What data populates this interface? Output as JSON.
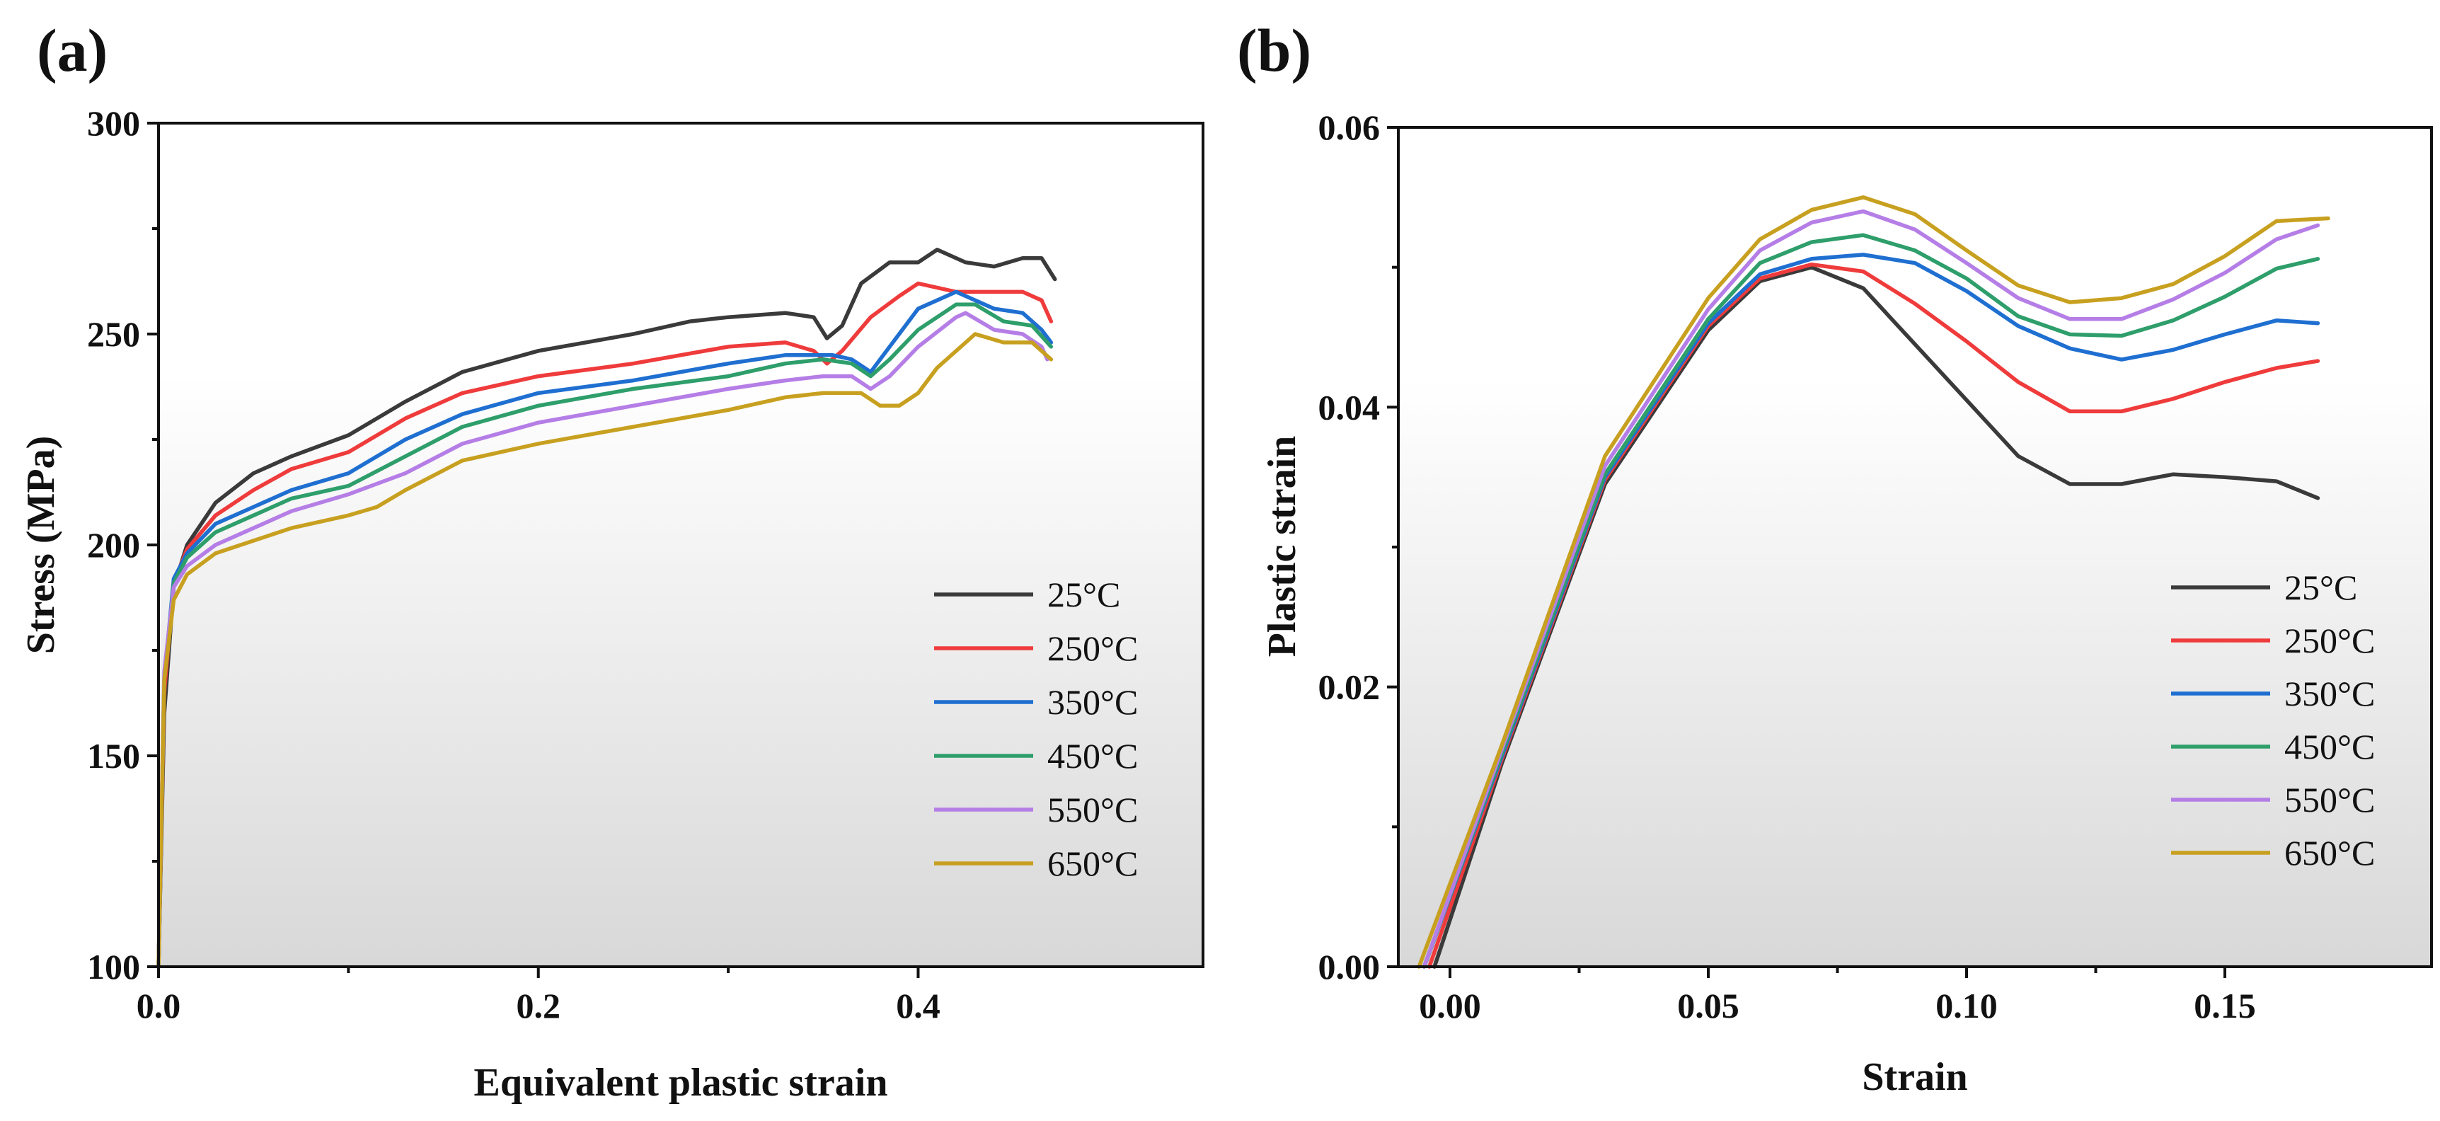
{
  "chart_data": [
    {
      "type": "line",
      "panel_label": "(a)",
      "xlabel": "Equivalent plastic strain",
      "ylabel": "Stress (MPa)",
      "xlim": [
        0,
        0.55
      ],
      "ylim": [
        100,
        300
      ],
      "x_ticks": [
        0.0,
        0.2,
        0.4
      ],
      "x_tick_labels": [
        "0.0",
        "0.2",
        "0.4"
      ],
      "y_ticks": [
        100,
        150,
        200,
        250,
        300
      ],
      "y_tick_labels": [
        "100",
        "150",
        "200",
        "250",
        "300"
      ],
      "legend_position": "bottom-right",
      "series": [
        {
          "name": "25°C",
          "color": "#3a3a3a",
          "points": [
            [
              0,
              100
            ],
            [
              0.003,
              160
            ],
            [
              0.008,
              190
            ],
            [
              0.015,
              200
            ],
            [
              0.03,
              210
            ],
            [
              0.05,
              217
            ],
            [
              0.07,
              221
            ],
            [
              0.1,
              226
            ],
            [
              0.13,
              234
            ],
            [
              0.16,
              241
            ],
            [
              0.2,
              246
            ],
            [
              0.25,
              250
            ],
            [
              0.28,
              253
            ],
            [
              0.3,
              254
            ],
            [
              0.33,
              255
            ],
            [
              0.345,
              254
            ],
            [
              0.352,
              249
            ],
            [
              0.36,
              252
            ],
            [
              0.37,
              262
            ],
            [
              0.385,
              267
            ],
            [
              0.4,
              267
            ],
            [
              0.41,
              270
            ],
            [
              0.425,
              267
            ],
            [
              0.44,
              266
            ],
            [
              0.455,
              268
            ],
            [
              0.465,
              268
            ],
            [
              0.472,
              263
            ]
          ]
        },
        {
          "name": "250°C",
          "color": "#ef3b3b",
          "points": [
            [
              0,
              100
            ],
            [
              0.003,
              165
            ],
            [
              0.008,
              191
            ],
            [
              0.015,
              199
            ],
            [
              0.03,
              207
            ],
            [
              0.05,
              213
            ],
            [
              0.07,
              218
            ],
            [
              0.1,
              222
            ],
            [
              0.13,
              230
            ],
            [
              0.16,
              236
            ],
            [
              0.2,
              240
            ],
            [
              0.25,
              243
            ],
            [
              0.3,
              247
            ],
            [
              0.33,
              248
            ],
            [
              0.345,
              246
            ],
            [
              0.352,
              243
            ],
            [
              0.36,
              246
            ],
            [
              0.375,
              254
            ],
            [
              0.39,
              259
            ],
            [
              0.4,
              262
            ],
            [
              0.42,
              260
            ],
            [
              0.44,
              260
            ],
            [
              0.455,
              260
            ],
            [
              0.465,
              258
            ],
            [
              0.47,
              253
            ]
          ]
        },
        {
          "name": "350°C",
          "color": "#1f6fd1",
          "points": [
            [
              0,
              100
            ],
            [
              0.003,
              168
            ],
            [
              0.008,
              192
            ],
            [
              0.015,
              198
            ],
            [
              0.03,
              205
            ],
            [
              0.05,
              209
            ],
            [
              0.07,
              213
            ],
            [
              0.1,
              217
            ],
            [
              0.13,
              225
            ],
            [
              0.16,
              231
            ],
            [
              0.2,
              236
            ],
            [
              0.25,
              239
            ],
            [
              0.3,
              243
            ],
            [
              0.33,
              245
            ],
            [
              0.345,
              245
            ],
            [
              0.355,
              245
            ],
            [
              0.365,
              244
            ],
            [
              0.375,
              241
            ],
            [
              0.385,
              247
            ],
            [
              0.4,
              256
            ],
            [
              0.42,
              260
            ],
            [
              0.44,
              256
            ],
            [
              0.455,
              255
            ],
            [
              0.465,
              251
            ],
            [
              0.47,
              248
            ]
          ]
        },
        {
          "name": "450°C",
          "color": "#2e9e6b",
          "points": [
            [
              0,
              100
            ],
            [
              0.003,
              168
            ],
            [
              0.008,
              191
            ],
            [
              0.015,
              197
            ],
            [
              0.03,
              203
            ],
            [
              0.05,
              207
            ],
            [
              0.07,
              211
            ],
            [
              0.1,
              214
            ],
            [
              0.13,
              221
            ],
            [
              0.16,
              228
            ],
            [
              0.2,
              233
            ],
            [
              0.25,
              237
            ],
            [
              0.3,
              240
            ],
            [
              0.33,
              243
            ],
            [
              0.35,
              244
            ],
            [
              0.365,
              243
            ],
            [
              0.375,
              240
            ],
            [
              0.385,
              244
            ],
            [
              0.4,
              251
            ],
            [
              0.42,
              257
            ],
            [
              0.43,
              257
            ],
            [
              0.445,
              253
            ],
            [
              0.46,
              252
            ],
            [
              0.47,
              247
            ]
          ]
        },
        {
          "name": "550°C",
          "color": "#b57ee6",
          "points": [
            [
              0,
              100
            ],
            [
              0.003,
              170
            ],
            [
              0.008,
              190
            ],
            [
              0.015,
              195
            ],
            [
              0.03,
              200
            ],
            [
              0.05,
              204
            ],
            [
              0.07,
              208
            ],
            [
              0.1,
              212
            ],
            [
              0.13,
              217
            ],
            [
              0.16,
              224
            ],
            [
              0.2,
              229
            ],
            [
              0.25,
              233
            ],
            [
              0.3,
              237
            ],
            [
              0.33,
              239
            ],
            [
              0.35,
              240
            ],
            [
              0.365,
              240
            ],
            [
              0.375,
              237
            ],
            [
              0.385,
              240
            ],
            [
              0.4,
              247
            ],
            [
              0.42,
              254
            ],
            [
              0.425,
              255
            ],
            [
              0.44,
              251
            ],
            [
              0.455,
              250
            ],
            [
              0.465,
              247
            ],
            [
              0.468,
              244
            ]
          ]
        },
        {
          "name": "650°C",
          "color": "#c8a020",
          "points": [
            [
              0,
              100
            ],
            [
              0.003,
              168
            ],
            [
              0.008,
              187
            ],
            [
              0.015,
              193
            ],
            [
              0.03,
              198
            ],
            [
              0.05,
              201
            ],
            [
              0.07,
              204
            ],
            [
              0.1,
              207
            ],
            [
              0.115,
              209
            ],
            [
              0.13,
              213
            ],
            [
              0.16,
              220
            ],
            [
              0.2,
              224
            ],
            [
              0.25,
              228
            ],
            [
              0.3,
              232
            ],
            [
              0.33,
              235
            ],
            [
              0.35,
              236
            ],
            [
              0.37,
              236
            ],
            [
              0.38,
              233
            ],
            [
              0.39,
              233
            ],
            [
              0.4,
              236
            ],
            [
              0.41,
              242
            ],
            [
              0.43,
              250
            ],
            [
              0.445,
              248
            ],
            [
              0.46,
              248
            ],
            [
              0.47,
              244
            ]
          ]
        }
      ]
    },
    {
      "type": "line",
      "panel_label": "(b)",
      "xlabel": "Strain",
      "ylabel": "Plastic strain",
      "xlim": [
        -0.01,
        0.19
      ],
      "ylim": [
        0,
        0.06
      ],
      "x_ticks": [
        0.0,
        0.05,
        0.1,
        0.15
      ],
      "x_tick_labels": [
        "0.00",
        "0.05",
        "0.10",
        "0.15"
      ],
      "y_ticks": [
        0.0,
        0.02,
        0.04,
        0.06
      ],
      "y_tick_labels": [
        "0.00",
        "0.02",
        "0.04",
        "0.06"
      ],
      "legend_position": "bottom-right",
      "series": [
        {
          "name": "25°C",
          "color": "#3a3a3a",
          "points": [
            [
              -0.003,
              0
            ],
            [
              0.01,
              0.0145
            ],
            [
              0.03,
              0.0345
            ],
            [
              0.05,
              0.0455
            ],
            [
              0.06,
              0.049
            ],
            [
              0.07,
              0.05
            ],
            [
              0.08,
              0.0485
            ],
            [
              0.09,
              0.0445
            ],
            [
              0.1,
              0.0405
            ],
            [
              0.11,
              0.0365
            ],
            [
              0.12,
              0.0345
            ],
            [
              0.13,
              0.0345
            ],
            [
              0.14,
              0.0352
            ],
            [
              0.15,
              0.035
            ],
            [
              0.16,
              0.0347
            ],
            [
              0.168,
              0.0335
            ]
          ]
        },
        {
          "name": "250°C",
          "color": "#ef3b3b",
          "points": [
            [
              -0.004,
              0
            ],
            [
              0.01,
              0.0148
            ],
            [
              0.03,
              0.0348
            ],
            [
              0.05,
              0.0458
            ],
            [
              0.06,
              0.0492
            ],
            [
              0.07,
              0.0502
            ],
            [
              0.08,
              0.0497
            ],
            [
              0.09,
              0.0474
            ],
            [
              0.1,
              0.0447
            ],
            [
              0.11,
              0.0418
            ],
            [
              0.12,
              0.0397
            ],
            [
              0.13,
              0.0397
            ],
            [
              0.14,
              0.0406
            ],
            [
              0.15,
              0.0418
            ],
            [
              0.16,
              0.0428
            ],
            [
              0.168,
              0.0433
            ]
          ]
        },
        {
          "name": "350°C",
          "color": "#1f6fd1",
          "points": [
            [
              -0.005,
              0
            ],
            [
              0.01,
              0.015
            ],
            [
              0.03,
              0.035
            ],
            [
              0.05,
              0.046
            ],
            [
              0.06,
              0.0495
            ],
            [
              0.07,
              0.0506
            ],
            [
              0.08,
              0.0509
            ],
            [
              0.09,
              0.0503
            ],
            [
              0.1,
              0.0483
            ],
            [
              0.11,
              0.0458
            ],
            [
              0.12,
              0.0442
            ],
            [
              0.13,
              0.0434
            ],
            [
              0.14,
              0.0441
            ],
            [
              0.15,
              0.0452
            ],
            [
              0.16,
              0.0462
            ],
            [
              0.168,
              0.046
            ]
          ]
        },
        {
          "name": "450°C",
          "color": "#2e9e6b",
          "points": [
            [
              -0.005,
              0
            ],
            [
              0.01,
              0.0152
            ],
            [
              0.03,
              0.0352
            ],
            [
              0.05,
              0.0463
            ],
            [
              0.06,
              0.0503
            ],
            [
              0.07,
              0.0518
            ],
            [
              0.08,
              0.0523
            ],
            [
              0.09,
              0.0512
            ],
            [
              0.1,
              0.0492
            ],
            [
              0.11,
              0.0465
            ],
            [
              0.12,
              0.0452
            ],
            [
              0.13,
              0.0451
            ],
            [
              0.14,
              0.0462
            ],
            [
              0.15,
              0.0479
            ],
            [
              0.16,
              0.0499
            ],
            [
              0.168,
              0.0506
            ]
          ]
        },
        {
          "name": "550°C",
          "color": "#b57ee6",
          "points": [
            [
              -0.005,
              0
            ],
            [
              0.01,
              0.0155
            ],
            [
              0.03,
              0.0358
            ],
            [
              0.05,
              0.047
            ],
            [
              0.06,
              0.0512
            ],
            [
              0.07,
              0.0532
            ],
            [
              0.08,
              0.054
            ],
            [
              0.09,
              0.0527
            ],
            [
              0.1,
              0.0503
            ],
            [
              0.11,
              0.0478
            ],
            [
              0.12,
              0.0463
            ],
            [
              0.13,
              0.0463
            ],
            [
              0.14,
              0.0477
            ],
            [
              0.15,
              0.0496
            ],
            [
              0.16,
              0.052
            ],
            [
              0.168,
              0.053
            ]
          ]
        },
        {
          "name": "650°C",
          "color": "#c8a020",
          "points": [
            [
              -0.006,
              0
            ],
            [
              0.01,
              0.0158
            ],
            [
              0.03,
              0.0365
            ],
            [
              0.05,
              0.0478
            ],
            [
              0.06,
              0.052
            ],
            [
              0.07,
              0.0541
            ],
            [
              0.08,
              0.055
            ],
            [
              0.09,
              0.0538
            ],
            [
              0.1,
              0.0512
            ],
            [
              0.11,
              0.0487
            ],
            [
              0.12,
              0.0475
            ],
            [
              0.13,
              0.0478
            ],
            [
              0.14,
              0.0488
            ],
            [
              0.15,
              0.0508
            ],
            [
              0.16,
              0.0533
            ],
            [
              0.17,
              0.0535
            ]
          ]
        }
      ]
    }
  ]
}
